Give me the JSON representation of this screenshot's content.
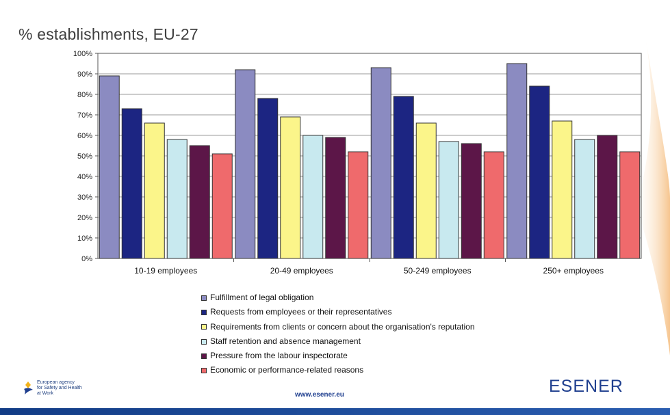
{
  "slide": {
    "title": "% establishments, EU-27",
    "website": "www.esener.eu",
    "logo_text": "ESENER",
    "agency_lines": [
      "European agency",
      "for Safety and Health",
      "at Work"
    ]
  },
  "chart_data": {
    "type": "bar",
    "title": "% establishments, EU-27",
    "xlabel": "",
    "ylabel": "",
    "ylim": [
      0,
      100
    ],
    "y_ticks": [
      "0%",
      "10%",
      "20%",
      "30%",
      "40%",
      "50%",
      "60%",
      "70%",
      "80%",
      "90%",
      "100%"
    ],
    "grid": true,
    "legend_position": "bottom",
    "categories": [
      "10-19 employees",
      "20-49 employees",
      "50-249 employees",
      "250+ employees"
    ],
    "series": [
      {
        "name": "Fulfillment of legal obligation",
        "color": "#8b8bc1",
        "values": [
          89,
          92,
          93,
          95
        ]
      },
      {
        "name": "Requests from employees or their representatives",
        "color": "#1c2582",
        "values": [
          73,
          78,
          79,
          84
        ]
      },
      {
        "name": "Requirements from clients or concern about the organisation's reputation",
        "color": "#fbf58a",
        "values": [
          66,
          69,
          66,
          67
        ]
      },
      {
        "name": "Staff retention and absence management",
        "color": "#c8e9ef",
        "values": [
          58,
          60,
          57,
          58
        ]
      },
      {
        "name": "Pressure from the labour inspectorate",
        "color": "#5c1648",
        "values": [
          55,
          59,
          56,
          60
        ]
      },
      {
        "name": "Economic or performance-related reasons",
        "color": "#ef6a6c",
        "values": [
          51,
          52,
          52,
          52
        ]
      }
    ]
  }
}
